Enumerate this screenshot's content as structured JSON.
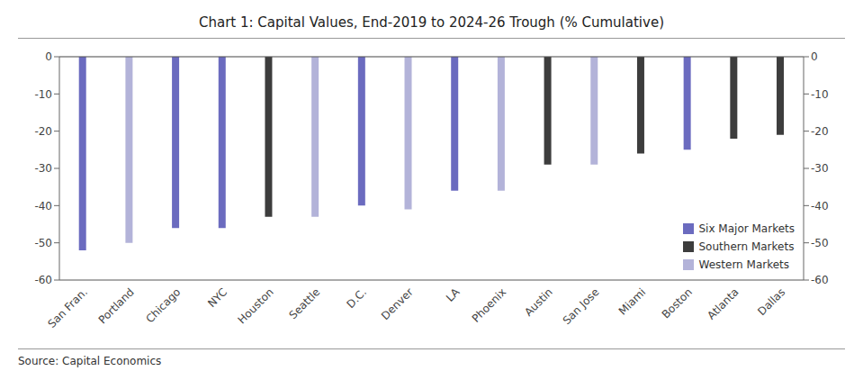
{
  "chart_data": {
    "type": "bar",
    "title": "Chart 1: Capital Values, End-2019 to 2024-26 Trough (% Cumulative)",
    "annotations": [
      "Source: Capital Economics"
    ],
    "categories": [
      "San Fran.",
      "Portland",
      "Chicago",
      "NYC",
      "Houston",
      "Seattle",
      "D.C.",
      "Denver",
      "LA",
      "Phoenix",
      "Austin",
      "San Jose",
      "Miami",
      "Boston",
      "Atlanta",
      "Dallas"
    ],
    "series": [
      {
        "name": "Six Major Markets",
        "color": "#6b6bbf",
        "values": [
          -52,
          null,
          -46,
          -46,
          null,
          null,
          -40,
          null,
          -36,
          null,
          null,
          null,
          null,
          -25,
          null,
          null
        ]
      },
      {
        "name": "Southern Markets",
        "color": "#3d3d3d",
        "values": [
          null,
          null,
          null,
          null,
          -43,
          null,
          null,
          null,
          null,
          null,
          -29,
          null,
          -26,
          null,
          -22,
          -21
        ]
      },
      {
        "name": "Western Markets",
        "color": "#b3b3d9",
        "values": [
          null,
          -50,
          null,
          null,
          null,
          -43,
          null,
          -41,
          null,
          -36,
          null,
          -29,
          null,
          null,
          null,
          null
        ]
      }
    ],
    "stacked": true,
    "ylim": [
      -60,
      0
    ],
    "yticks": [
      0,
      -10,
      -20,
      -30,
      -40,
      -50,
      -60
    ],
    "grid": true,
    "legend": "lower right"
  }
}
